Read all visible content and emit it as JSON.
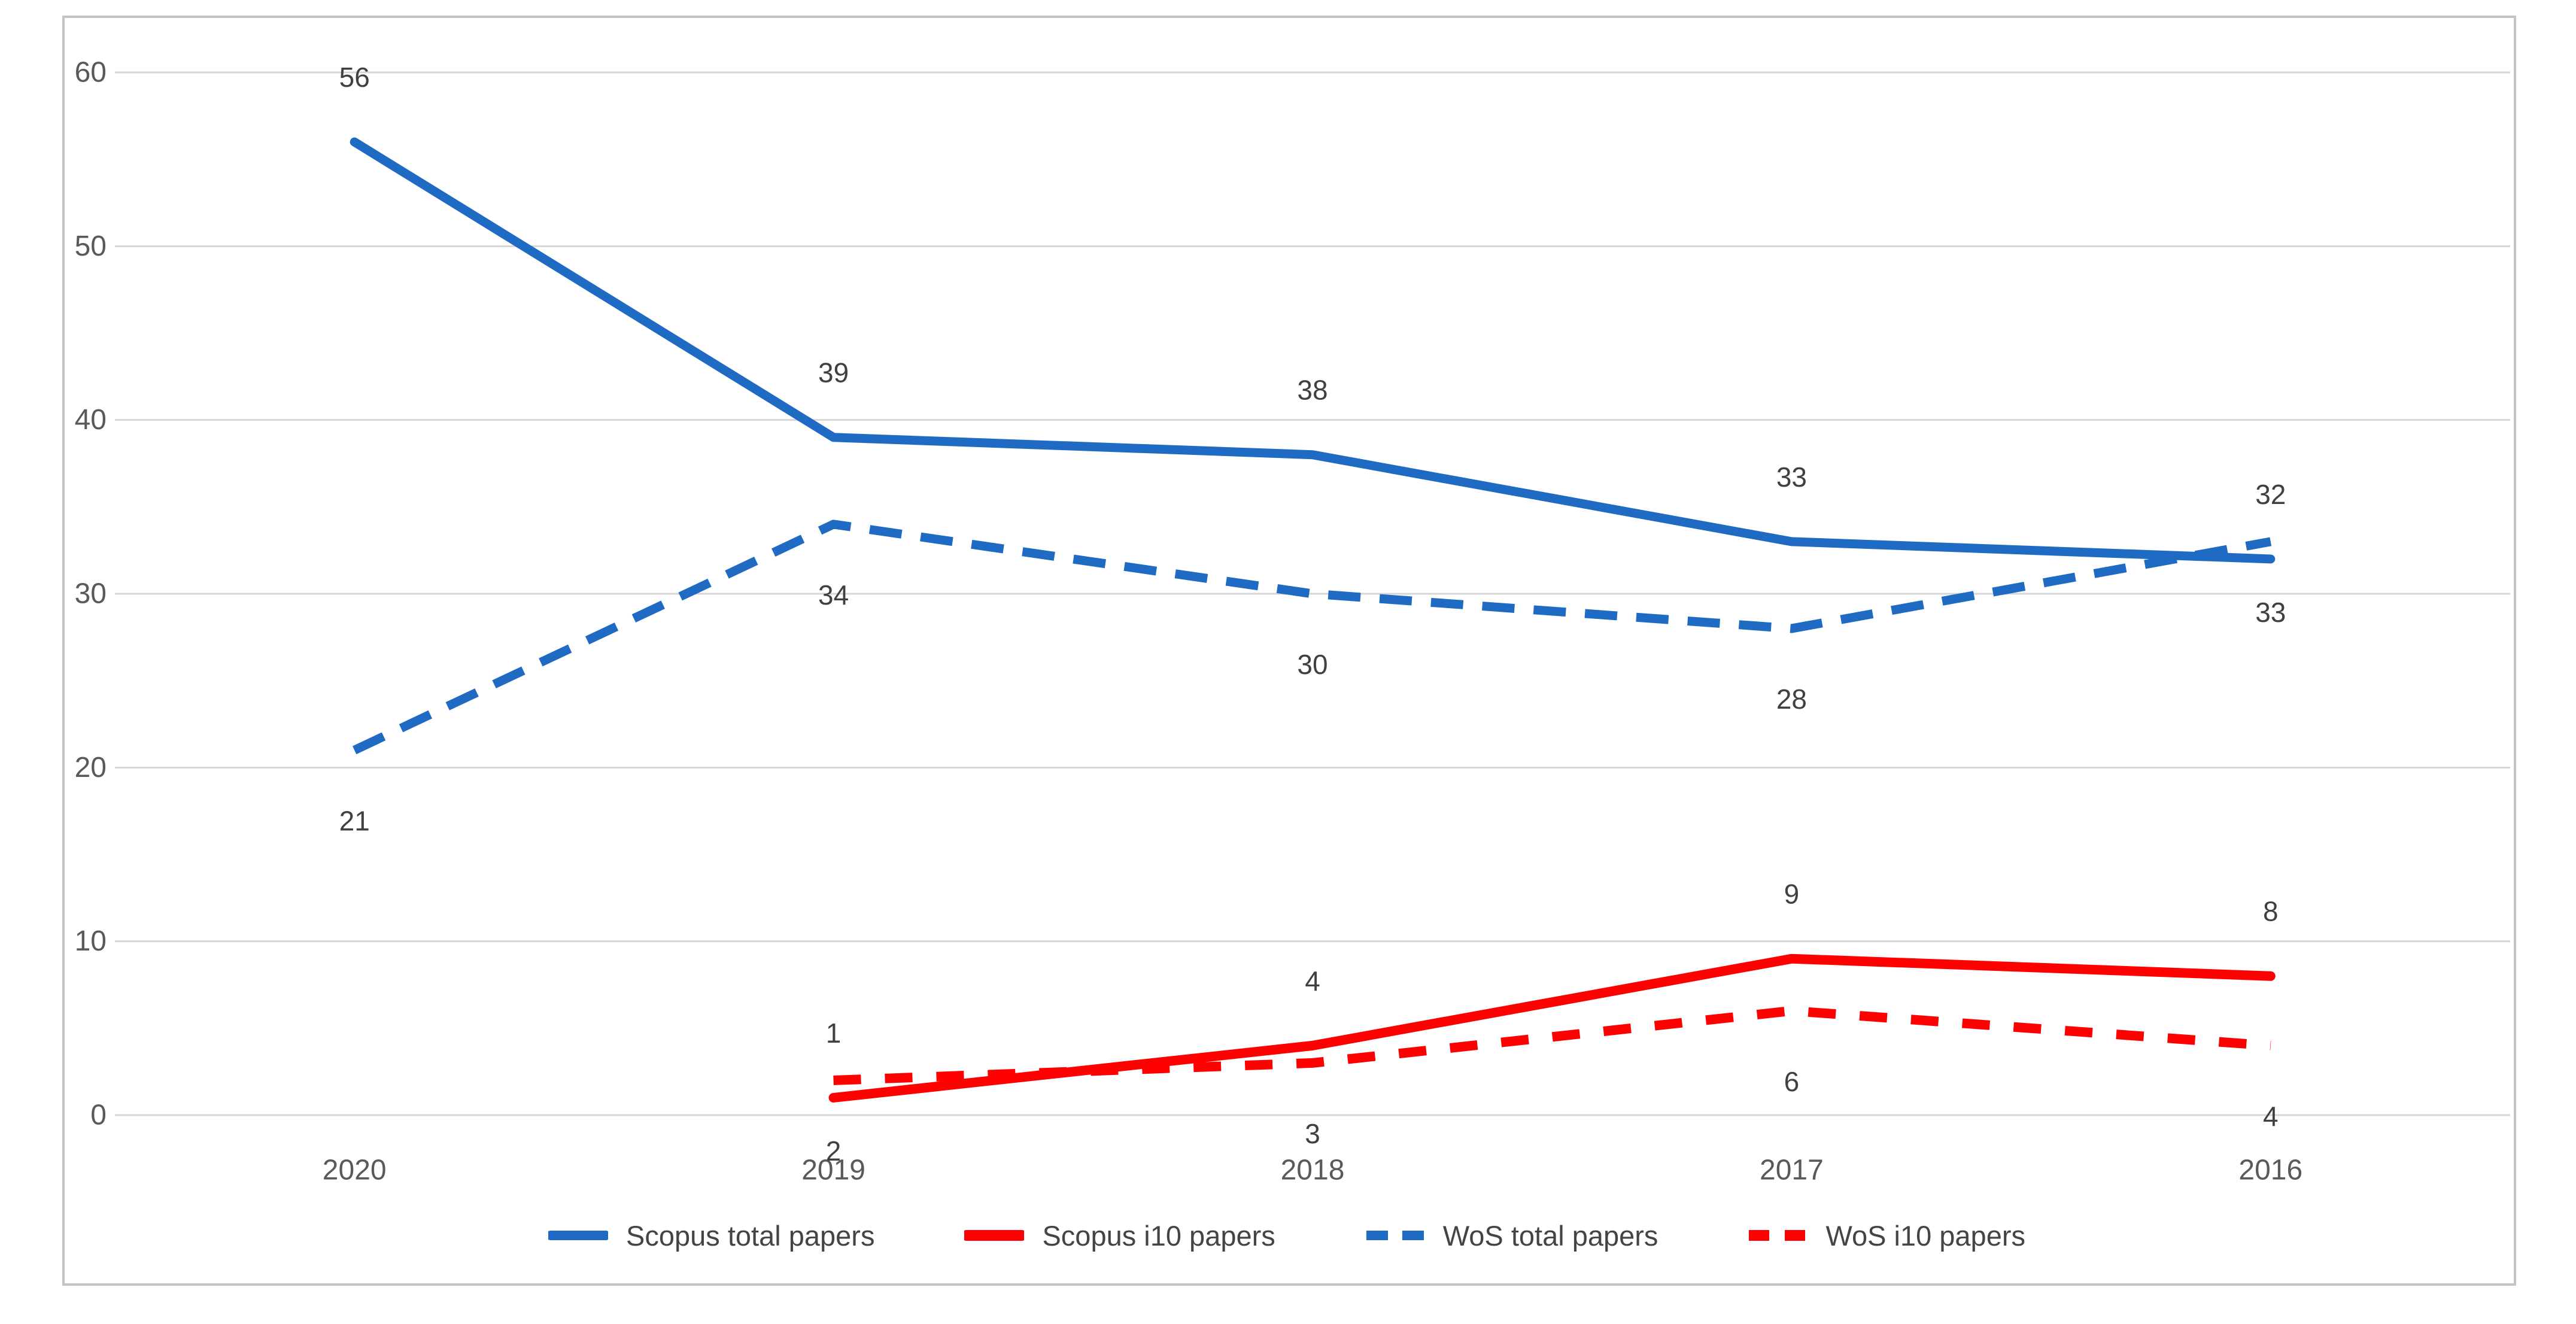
{
  "figure": {
    "background": "#ffffff",
    "frame_border_color": "#c4c4c4"
  },
  "colors": {
    "blue_series": "#1f6bc4",
    "red_series": "#ff0000",
    "gridline": "#d6d6d6",
    "axis_text": "#595959",
    "data_label_text": "#404040"
  },
  "chart_data": {
    "type": "line",
    "title": "",
    "xlabel": "",
    "ylabel": "",
    "categories": [
      "2020",
      "2019",
      "2018",
      "2017",
      "2016"
    ],
    "series": [
      {
        "name": "Scopus total papers",
        "color": "#1f6bc4",
        "line_style": "solid",
        "label_position": "above",
        "values": [
          56,
          39,
          38,
          33,
          32
        ]
      },
      {
        "name": "Scopus i10 papers",
        "color": "#ff0000",
        "line_style": "solid",
        "label_position": "above",
        "values": [
          null,
          1,
          4,
          9,
          8
        ]
      },
      {
        "name": "WoS total papers",
        "color": "#1f6bc4",
        "line_style": "dashed",
        "label_position": "below",
        "values": [
          21,
          34,
          30,
          28,
          33
        ]
      },
      {
        "name": "WoS i10 papers",
        "color": "#ff0000",
        "line_style": "dashed",
        "label_position": "below",
        "values": [
          null,
          2,
          3,
          6,
          4
        ]
      }
    ],
    "y_axis": {
      "min": 0,
      "max": 60,
      "tick_step": 10,
      "tick_labels": [
        "0",
        "10",
        "20",
        "30",
        "40",
        "50",
        "60"
      ]
    },
    "grid": true,
    "legend_position": "bottom"
  }
}
